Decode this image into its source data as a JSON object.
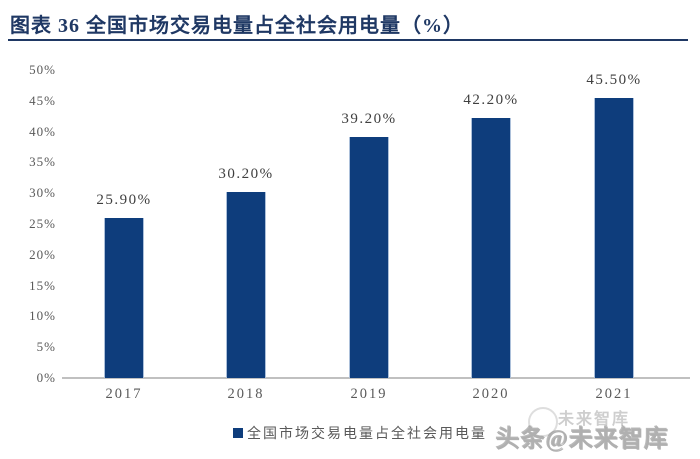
{
  "figure": {
    "title": "图表 36  全国市场交易电量占全社会用电量（%）",
    "watermark_main": "头条@未来智库",
    "watermark_overlay": "未来智库"
  },
  "colors": {
    "title_navy": "#1F3864",
    "bar_fill": "#0E3D7C",
    "axis_text": "#595959",
    "value_label": "#3F3F3F",
    "axis_line": "#C0C0C0",
    "watermark_gray": "#B0B0B0"
  },
  "chart_data": {
    "type": "bar",
    "title": "全国市场交易电量占全社会用电量（%）",
    "categories": [
      "2017",
      "2018",
      "2019",
      "2020",
      "2021"
    ],
    "values": [
      25.9,
      30.2,
      39.2,
      42.2,
      45.5
    ],
    "value_labels": [
      "25.90%",
      "30.20%",
      "39.20%",
      "42.20%",
      "45.50%"
    ],
    "xlabel": "",
    "ylabel": "",
    "ylim": [
      0,
      50
    ],
    "ytick_step": 5,
    "ytick_labels": [
      "0%",
      "5%",
      "10%",
      "15%",
      "20%",
      "25%",
      "30%",
      "35%",
      "40%",
      "45%",
      "50%"
    ],
    "grid": false,
    "legend": {
      "position": "bottom",
      "entries": [
        "全国市场交易电量占全社会用电量"
      ]
    }
  }
}
